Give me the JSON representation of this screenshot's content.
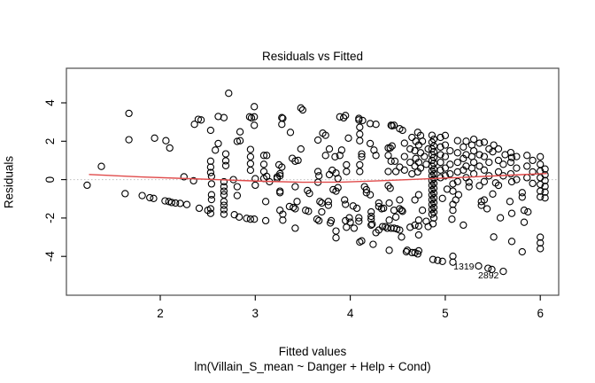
{
  "title": "Residuals vs Fitted",
  "x_axis": {
    "label": "Fitted values",
    "sub_label": "lm(Villain_S_mean ~ Danger + Help + Cond)",
    "ticks": [
      2,
      3,
      4,
      5,
      6
    ],
    "range": [
      1.0,
      6.2
    ]
  },
  "y_axis": {
    "label": "Residuals",
    "ticks": [
      4,
      2,
      0,
      -2,
      -4
    ],
    "range": [
      -6.1,
      5.8
    ]
  },
  "colors": {
    "point": "#000000",
    "smoother": "#e04b4b",
    "zero_line": "#bfbfbf",
    "frame": "#4d4d4d",
    "text": "#000000"
  },
  "chart_data": {
    "type": "scatter",
    "title": "Residuals vs Fitted",
    "xlabel": "Fitted values",
    "ylabel": "Residuals",
    "xlim": [
      1.0,
      6.2
    ],
    "ylim": [
      -6.1,
      5.8
    ],
    "grid": false,
    "zero_line_y": 0,
    "smoother_points": [
      [
        1.25,
        0.27
      ],
      [
        1.8,
        0.14
      ],
      [
        2.3,
        0.05
      ],
      [
        2.7,
        -0.02
      ],
      [
        3.1,
        -0.09
      ],
      [
        3.5,
        -0.14
      ],
      [
        3.9,
        -0.13
      ],
      [
        4.3,
        -0.06
      ],
      [
        4.7,
        0.02
      ],
      [
        5.1,
        0.1
      ],
      [
        5.5,
        0.19
      ],
      [
        5.8,
        0.26
      ],
      [
        6.07,
        0.32
      ]
    ],
    "labeled_points": [
      {
        "label": "1319",
        "x": 5.35,
        "y": -4.5
      },
      {
        "label": "2892",
        "x": 5.61,
        "y": -4.78
      }
    ],
    "points": [
      [
        1.23,
        -0.29
      ],
      [
        1.38,
        0.69
      ],
      [
        1.63,
        -0.73
      ],
      [
        1.67,
        3.45
      ],
      [
        1.67,
        2.08
      ],
      [
        1.81,
        -0.83
      ],
      [
        1.89,
        -0.94
      ],
      [
        1.93,
        -0.98
      ],
      [
        1.94,
        2.16
      ],
      [
        2.05,
        -1.11
      ],
      [
        2.06,
        2.03
      ],
      [
        2.09,
        -1.14
      ],
      [
        2.1,
        1.65
      ],
      [
        2.12,
        -1.19
      ],
      [
        2.16,
        -1.22
      ],
      [
        2.21,
        -1.24
      ],
      [
        2.25,
        0.15
      ],
      [
        2.28,
        -1.3
      ],
      [
        2.35,
        -0.06
      ],
      [
        2.36,
        2.88
      ],
      [
        2.4,
        3.14
      ],
      [
        2.41,
        -1.49
      ],
      [
        2.43,
        3.11
      ],
      [
        2.5,
        -1.6
      ],
      [
        2.53,
        2.57
      ],
      [
        2.53,
        0.96
      ],
      [
        2.53,
        0.65
      ],
      [
        2.53,
        0.37
      ],
      [
        2.54,
        0.17
      ],
      [
        2.54,
        -0.22
      ],
      [
        2.54,
        -0.79
      ],
      [
        2.54,
        -1.04
      ],
      [
        2.53,
        -1.52
      ],
      [
        2.53,
        -1.76
      ],
      [
        2.58,
        1.54
      ],
      [
        2.61,
        3.29
      ],
      [
        2.61,
        1.88
      ],
      [
        2.67,
        3.23
      ],
      [
        2.69,
        1.34
      ],
      [
        2.69,
        0.98
      ],
      [
        2.69,
        0.73
      ],
      [
        2.67,
        -0.11
      ],
      [
        2.67,
        -0.37
      ],
      [
        2.67,
        -0.6
      ],
      [
        2.67,
        -0.79
      ],
      [
        2.67,
        -1.14
      ],
      [
        2.67,
        -1.34
      ],
      [
        2.67,
        -1.56
      ],
      [
        2.67,
        -1.8
      ],
      [
        2.72,
        4.5
      ],
      [
        2.77,
        0.0
      ],
      [
        2.78,
        -1.83
      ],
      [
        2.81,
        1.99
      ],
      [
        2.81,
        -0.37
      ],
      [
        2.81,
        -0.83
      ],
      [
        2.83,
        -1.95
      ],
      [
        2.84,
        2.49
      ],
      [
        2.84,
        2.03
      ],
      [
        2.91,
        -2.02
      ],
      [
        2.94,
        3.27
      ],
      [
        2.95,
        1.57
      ],
      [
        2.95,
        1.19
      ],
      [
        2.95,
        0.83
      ],
      [
        2.95,
        0.49
      ],
      [
        2.95,
        -2.06
      ],
      [
        2.96,
        3.22
      ],
      [
        2.99,
        3.8
      ],
      [
        2.99,
        3.27
      ],
      [
        2.99,
        2.83
      ],
      [
        2.99,
        -2.06
      ],
      [
        3.0,
        0.05
      ],
      [
        3.0,
        -0.29
      ],
      [
        3.09,
        1.26
      ],
      [
        3.09,
        0.8
      ],
      [
        3.09,
        0.42
      ],
      [
        3.09,
        0.06
      ],
      [
        3.11,
        -1.14
      ],
      [
        3.11,
        -2.14
      ],
      [
        3.12,
        1.26
      ],
      [
        3.12,
        0.17
      ],
      [
        3.15,
        -0.11
      ],
      [
        3.23,
        0.14
      ],
      [
        3.23,
        0.06
      ],
      [
        3.25,
        0.77
      ],
      [
        3.26,
        0.31
      ],
      [
        3.26,
        0.2
      ],
      [
        3.26,
        -0.6
      ],
      [
        3.26,
        -0.68
      ],
      [
        3.26,
        -1.6
      ],
      [
        3.28,
        3.23
      ],
      [
        3.28,
        2.88
      ],
      [
        3.28,
        0.65
      ],
      [
        3.29,
        3.19
      ],
      [
        3.29,
        -1.8
      ],
      [
        3.29,
        -2.11
      ],
      [
        3.36,
        -1.4
      ],
      [
        3.37,
        2.46
      ],
      [
        3.39,
        1.11
      ],
      [
        3.4,
        -1.45
      ],
      [
        3.42,
        0.96
      ],
      [
        3.42,
        -0.37
      ],
      [
        3.42,
        -1.52
      ],
      [
        3.42,
        -2.53
      ],
      [
        3.44,
        -1.14
      ],
      [
        3.45,
        1.0
      ],
      [
        3.48,
        3.73
      ],
      [
        3.48,
        1.6
      ],
      [
        3.5,
        3.63
      ],
      [
        3.53,
        -1.6
      ],
      [
        3.55,
        -0.57
      ],
      [
        3.56,
        -1.65
      ],
      [
        3.57,
        -0.72
      ],
      [
        3.65,
        -2.06
      ],
      [
        3.66,
        2.06
      ],
      [
        3.66,
        0.42
      ],
      [
        3.66,
        -0.14
      ],
      [
        3.67,
        0.2
      ],
      [
        3.67,
        -2.14
      ],
      [
        3.68,
        -1.14
      ],
      [
        3.7,
        -1.22
      ],
      [
        3.7,
        -1.68
      ],
      [
        3.71,
        2.42
      ],
      [
        3.74,
        2.31
      ],
      [
        3.74,
        1.26
      ],
      [
        3.77,
        -1.14
      ],
      [
        3.77,
        -1.34
      ],
      [
        3.78,
        1.6
      ],
      [
        3.78,
        0.26
      ],
      [
        3.79,
        -2.26
      ],
      [
        3.8,
        -2.14
      ],
      [
        3.81,
        0.49
      ],
      [
        3.82,
        -0.52
      ],
      [
        3.84,
        1.19
      ],
      [
        3.85,
        0.34
      ],
      [
        3.85,
        -0.6
      ],
      [
        3.85,
        -2.68
      ],
      [
        3.85,
        -3.03
      ],
      [
        3.87,
        0.06
      ],
      [
        3.87,
        -0.42
      ],
      [
        3.89,
        3.27
      ],
      [
        3.89,
        1.26
      ],
      [
        3.91,
        1.54
      ],
      [
        3.93,
        3.22
      ],
      [
        3.94,
        -1.06
      ],
      [
        3.95,
        3.34
      ],
      [
        3.95,
        -1.29
      ],
      [
        3.95,
        -2.14
      ],
      [
        3.96,
        0.77
      ],
      [
        3.96,
        0.42
      ],
      [
        3.96,
        -2.48
      ],
      [
        3.98,
        2.16
      ],
      [
        3.99,
        -1.99
      ],
      [
        4.0,
        -2.22
      ],
      [
        4.03,
        -1.37
      ],
      [
        4.04,
        -2.53
      ],
      [
        4.07,
        -1.49
      ],
      [
        4.09,
        3.19
      ],
      [
        4.09,
        3.11
      ],
      [
        4.09,
        -1.99
      ],
      [
        4.09,
        -2.17
      ],
      [
        4.1,
        2.73
      ],
      [
        4.1,
        2.37
      ],
      [
        4.1,
        2.03
      ],
      [
        4.1,
        0.77
      ],
      [
        4.1,
        0.42
      ],
      [
        4.1,
        -3.25
      ],
      [
        4.12,
        1.34
      ],
      [
        4.12,
        1.19
      ],
      [
        4.12,
        -3.19
      ],
      [
        4.13,
        3.08
      ],
      [
        4.15,
        -0.37
      ],
      [
        4.17,
        -0.52
      ],
      [
        4.17,
        -0.68
      ],
      [
        4.21,
        2.92
      ],
      [
        4.21,
        1.88
      ],
      [
        4.21,
        -0.79
      ],
      [
        4.22,
        -1.68
      ],
      [
        4.22,
        -1.91
      ],
      [
        4.22,
        -2.06
      ],
      [
        4.22,
        -2.37
      ],
      [
        4.23,
        -2.32
      ],
      [
        4.24,
        -3.37
      ],
      [
        4.25,
        1.54
      ],
      [
        4.27,
        2.88
      ],
      [
        4.27,
        1.26
      ],
      [
        4.27,
        -2.76
      ],
      [
        4.3,
        -1.22
      ],
      [
        4.3,
        -1.4
      ],
      [
        4.3,
        -2.63
      ],
      [
        4.33,
        -1.52
      ],
      [
        4.34,
        -2.45
      ],
      [
        4.35,
        -1.49
      ],
      [
        4.37,
        -2.45
      ],
      [
        4.39,
        -2.53
      ],
      [
        4.4,
        1.65
      ],
      [
        4.4,
        1.26
      ],
      [
        4.4,
        0.42
      ],
      [
        4.4,
        -0.32
      ],
      [
        4.41,
        -1.22
      ],
      [
        4.41,
        -2.11
      ],
      [
        4.41,
        -3.68
      ],
      [
        4.42,
        1.65
      ],
      [
        4.42,
        -0.45
      ],
      [
        4.43,
        2.83
      ],
      [
        4.43,
        0.96
      ],
      [
        4.43,
        -2.53
      ],
      [
        4.44,
        2.8
      ],
      [
        4.44,
        1.75
      ],
      [
        4.46,
        2.83
      ],
      [
        4.46,
        -1.6
      ],
      [
        4.46,
        -2.53
      ],
      [
        4.47,
        0.96
      ],
      [
        4.48,
        0.42
      ],
      [
        4.48,
        -1.95
      ],
      [
        4.49,
        -2.57
      ],
      [
        4.52,
        2.65
      ],
      [
        4.52,
        0.65
      ],
      [
        4.52,
        -1.06
      ],
      [
        4.52,
        -1.52
      ],
      [
        4.52,
        -2.63
      ],
      [
        4.54,
        -1.6
      ],
      [
        4.54,
        -2.99
      ],
      [
        4.55,
        2.57
      ],
      [
        4.55,
        -1.65
      ],
      [
        4.57,
        1.9
      ],
      [
        4.57,
        1.2
      ],
      [
        4.57,
        0.5
      ],
      [
        4.59,
        -3.76
      ],
      [
        4.6,
        -3.68
      ],
      [
        4.63,
        1.6
      ],
      [
        4.63,
        0.9
      ],
      [
        4.63,
        -2.48
      ],
      [
        4.65,
        2.2
      ],
      [
        4.65,
        0.3
      ],
      [
        4.65,
        -3.8
      ],
      [
        4.68,
        1.5
      ],
      [
        4.68,
        0.7
      ],
      [
        4.68,
        -1.06
      ],
      [
        4.68,
        -2.37
      ],
      [
        4.68,
        -3.8
      ],
      [
        4.69,
        2.0
      ],
      [
        4.69,
        1.1
      ],
      [
        4.71,
        2.46
      ],
      [
        4.71,
        0.4
      ],
      [
        4.71,
        -3.87
      ],
      [
        4.72,
        1.8
      ],
      [
        4.72,
        0.9
      ],
      [
        4.72,
        -0.79
      ],
      [
        4.72,
        -2.11
      ],
      [
        4.72,
        -2.42
      ],
      [
        4.72,
        -2.88
      ],
      [
        4.72,
        -3.71
      ],
      [
        4.74,
        2.3
      ],
      [
        4.74,
        1.4
      ],
      [
        4.74,
        0.6
      ],
      [
        4.76,
        2.0
      ],
      [
        4.76,
        -1.6
      ],
      [
        4.78,
        1.2
      ],
      [
        4.8,
        0.8
      ],
      [
        4.8,
        -2.17
      ],
      [
        4.82,
        1.6
      ],
      [
        4.82,
        -2.45
      ],
      [
        4.86,
        2.31
      ],
      [
        4.86,
        1.95
      ],
      [
        4.86,
        1.6
      ],
      [
        4.86,
        1.3
      ],
      [
        4.86,
        1.0
      ],
      [
        4.86,
        0.7
      ],
      [
        4.86,
        0.45
      ],
      [
        4.86,
        0.2
      ],
      [
        4.86,
        -0.05
      ],
      [
        4.86,
        -0.3
      ],
      [
        4.86,
        -0.55
      ],
      [
        4.86,
        -0.8
      ],
      [
        4.86,
        -1.05
      ],
      [
        4.86,
        -1.3
      ],
      [
        4.86,
        -1.55
      ],
      [
        4.86,
        -1.8
      ],
      [
        4.87,
        -2.3
      ],
      [
        4.87,
        -4.16
      ],
      [
        4.88,
        2.1
      ],
      [
        4.88,
        1.75
      ],
      [
        4.88,
        1.45
      ],
      [
        4.88,
        1.15
      ],
      [
        4.88,
        0.85
      ],
      [
        4.88,
        0.55
      ],
      [
        4.88,
        0.3
      ],
      [
        4.88,
        0.05
      ],
      [
        4.88,
        -0.2
      ],
      [
        4.88,
        -0.45
      ],
      [
        4.88,
        -0.7
      ],
      [
        4.88,
        -0.95
      ],
      [
        4.88,
        -1.2
      ],
      [
        4.88,
        -1.45
      ],
      [
        4.88,
        -1.7
      ],
      [
        4.88,
        -2.0
      ],
      [
        4.92,
        -4.21
      ],
      [
        4.95,
        2.2
      ],
      [
        4.95,
        1.7
      ],
      [
        4.95,
        1.3
      ],
      [
        4.95,
        0.9
      ],
      [
        4.95,
        0.5
      ],
      [
        4.95,
        0.1
      ],
      [
        4.97,
        -0.98
      ],
      [
        4.97,
        -4.26
      ],
      [
        5.0,
        2.3
      ],
      [
        5.0,
        1.8
      ],
      [
        5.0,
        1.2
      ],
      [
        5.0,
        0.6
      ],
      [
        5.0,
        0.2
      ],
      [
        5.02,
        -0.5
      ],
      [
        5.05,
        1.5
      ],
      [
        5.05,
        0.8
      ],
      [
        5.05,
        0.3
      ],
      [
        5.07,
        -2.06
      ],
      [
        5.08,
        -0.22
      ],
      [
        5.08,
        -0.6
      ],
      [
        5.08,
        -1.29
      ],
      [
        5.08,
        -1.6
      ],
      [
        5.08,
        -3.99
      ],
      [
        5.08,
        -4.3
      ],
      [
        5.11,
        -1.06
      ],
      [
        5.13,
        2.03
      ],
      [
        5.13,
        1.4
      ],
      [
        5.13,
        0.9
      ],
      [
        5.13,
        0.4
      ],
      [
        5.13,
        -0.1
      ],
      [
        5.14,
        -0.79
      ],
      [
        5.19,
        1.7
      ],
      [
        5.19,
        1.1
      ],
      [
        5.19,
        0.5
      ],
      [
        5.19,
        -2.37
      ],
      [
        5.22,
        2.0
      ],
      [
        5.22,
        1.3
      ],
      [
        5.22,
        0.7
      ],
      [
        5.22,
        0.1
      ],
      [
        5.25,
        -0.14
      ],
      [
        5.25,
        -0.37
      ],
      [
        5.28,
        1.8
      ],
      [
        5.28,
        1.2
      ],
      [
        5.28,
        0.6
      ],
      [
        5.3,
        2.1
      ],
      [
        5.3,
        1.5
      ],
      [
        5.3,
        0.9
      ],
      [
        5.3,
        0.3
      ],
      [
        5.36,
        1.9
      ],
      [
        5.36,
        1.3
      ],
      [
        5.36,
        0.7
      ],
      [
        5.36,
        -0.32
      ],
      [
        5.38,
        -1.14
      ],
      [
        5.38,
        -1.34
      ],
      [
        5.41,
        1.95
      ],
      [
        5.41,
        1.2
      ],
      [
        5.41,
        0.5
      ],
      [
        5.41,
        -0.1
      ],
      [
        5.41,
        -1.06
      ],
      [
        5.44,
        -1.52
      ],
      [
        5.46,
        1.6
      ],
      [
        5.46,
        0.9
      ],
      [
        5.46,
        0.2
      ],
      [
        5.45,
        -4.62
      ],
      [
        5.49,
        -4.68
      ],
      [
        5.5,
        1.45
      ],
      [
        5.5,
        -0.75
      ],
      [
        5.51,
        1.8
      ],
      [
        5.51,
        -2.99
      ],
      [
        5.53,
        -0.17
      ],
      [
        5.56,
        1.6
      ],
      [
        5.56,
        1.0
      ],
      [
        5.56,
        0.4
      ],
      [
        5.56,
        -0.3
      ],
      [
        5.58,
        -1.99
      ],
      [
        5.61,
        0.8
      ],
      [
        5.61,
        0.2
      ],
      [
        5.63,
        1.3
      ],
      [
        5.68,
        -1.14
      ],
      [
        5.69,
        1.41
      ],
      [
        5.69,
        0.9
      ],
      [
        5.69,
        0.3
      ],
      [
        5.7,
        1.15
      ],
      [
        5.7,
        -0.11
      ],
      [
        5.7,
        -1.76
      ],
      [
        5.7,
        -3.22
      ],
      [
        5.75,
        1.2
      ],
      [
        5.75,
        0.6
      ],
      [
        5.75,
        0.0
      ],
      [
        5.81,
        -0.68
      ],
      [
        5.81,
        -0.91
      ],
      [
        5.81,
        -3.76
      ],
      [
        5.83,
        -1.6
      ],
      [
        5.83,
        -2.22
      ],
      [
        5.86,
        1.26
      ],
      [
        5.86,
        0.7
      ],
      [
        5.86,
        0.1
      ],
      [
        5.87,
        -1.68
      ],
      [
        5.92,
        1.0
      ],
      [
        5.92,
        0.4
      ],
      [
        5.92,
        -0.2
      ],
      [
        6.0,
        1.19
      ],
      [
        6.0,
        0.8
      ],
      [
        6.0,
        0.45
      ],
      [
        6.0,
        0.1
      ],
      [
        6.0,
        -0.25
      ],
      [
        6.0,
        -0.6
      ],
      [
        6.0,
        -0.9
      ],
      [
        6.0,
        -3.0
      ],
      [
        6.0,
        -3.3
      ],
      [
        6.0,
        -3.6
      ],
      [
        6.05,
        0.55
      ],
      [
        6.05,
        0.25
      ],
      [
        6.05,
        -0.05
      ],
      [
        6.05,
        -0.35
      ],
      [
        6.05,
        -0.65
      ],
      [
        6.05,
        -0.95
      ]
    ]
  }
}
